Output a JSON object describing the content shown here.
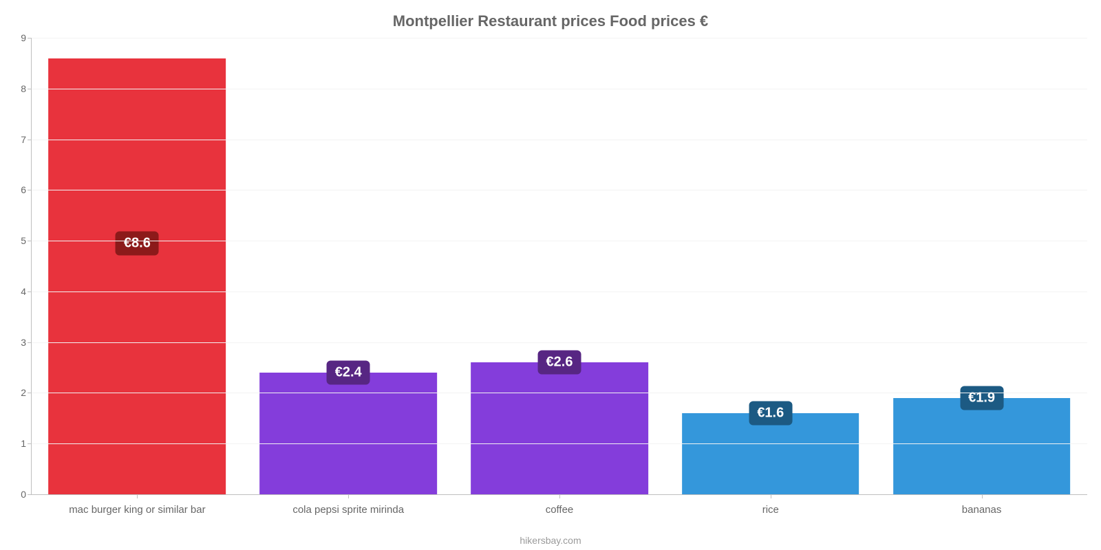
{
  "chart": {
    "type": "bar",
    "title": "Montpellier Restaurant prices Food prices €",
    "title_fontsize": 22,
    "title_color": "#666666",
    "credit": "hikersbay.com",
    "credit_fontsize": 14,
    "credit_color": "#9a9a9a",
    "background_color": "#ffffff",
    "grid_color": "#f3f3f3",
    "axis_color": "#bfbfbf",
    "tick_color": "#666666",
    "tick_fontsize": 14,
    "xlabel_fontsize": 15,
    "ylim": [
      0,
      9
    ],
    "yticks": [
      0,
      1,
      2,
      3,
      4,
      5,
      6,
      7,
      8,
      9
    ],
    "bar_width_pct": 84,
    "categories": [
      "mac burger king or similar bar",
      "cola pepsi sprite mirinda",
      "coffee",
      "rice",
      "bananas"
    ],
    "values": [
      8.6,
      2.4,
      2.6,
      1.6,
      1.9
    ],
    "value_labels": [
      "€8.6",
      "€2.4",
      "€2.6",
      "€1.6",
      "€1.9"
    ],
    "bar_colors": [
      "#e8333d",
      "#843ddb",
      "#843ddb",
      "#3497db",
      "#3497db"
    ],
    "label_bg_colors": [
      "#8c1a1a",
      "#572683",
      "#572683",
      "#1c5a83",
      "#1c5a83"
    ],
    "label_text_color": "#ffffff",
    "label_fontsize": 20,
    "label_border_radius": 6
  }
}
